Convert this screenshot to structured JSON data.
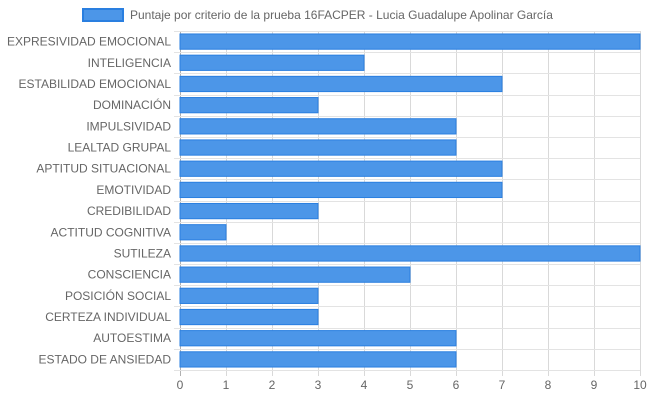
{
  "chart_data": {
    "type": "bar",
    "orientation": "horizontal",
    "categories": [
      "EXPRESIVIDAD EMOCIONAL",
      "INTELIGENCIA",
      "ESTABILIDAD EMOCIONAL",
      "DOMINACIÓN",
      "IMPULSIVIDAD",
      "LEALTAD GRUPAL",
      "APTITUD SITUACIONAL",
      "EMOTIVIDAD",
      "CREDIBILIDAD",
      "ACTITUD COGNITIVA",
      "SUTILEZA",
      "CONSCIENCIA",
      "POSICIÓN SOCIAL",
      "CERTEZA INDIVIDUAL",
      "AUTOESTIMA",
      "ESTADO DE ANSIEDAD"
    ],
    "series": [
      {
        "name": "Puntaje por criterio de la prueba 16FACPER - Lucia Guadalupe Apolinar García",
        "values": [
          10,
          4,
          7,
          3,
          6,
          6,
          7,
          7,
          3,
          1,
          10,
          5,
          3,
          3,
          6,
          6
        ],
        "color": "#4c96e8",
        "border_color": "#2a7fe0"
      }
    ],
    "xlim": [
      0,
      10
    ],
    "xticks": [
      "0",
      "1",
      "2",
      "3",
      "4",
      "5",
      "6",
      "7",
      "8",
      "9",
      "10"
    ],
    "grid": true,
    "legend_position": "top"
  }
}
